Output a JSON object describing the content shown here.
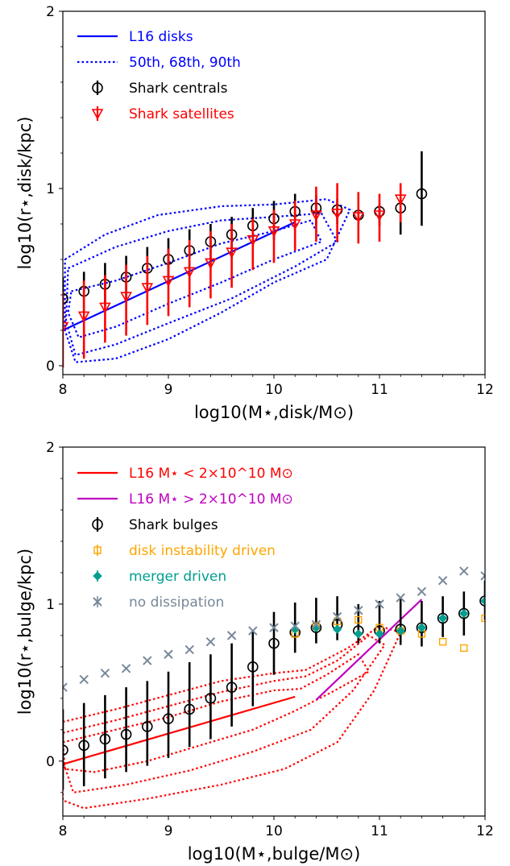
{
  "chart_data": [
    {
      "type": "scatter",
      "xlabel": "log10(M⋆,disk/M⊙)",
      "ylabel": "log10(r⋆,disk/kpc)",
      "xlim": [
        8,
        12
      ],
      "ylim": [
        -0.05,
        2.0
      ],
      "xticks": [
        8,
        9,
        10,
        11,
        12
      ],
      "yticks": [
        0,
        1,
        2
      ],
      "legend_position": "top-left",
      "lines": [
        {
          "name": "L16 disks",
          "color": "#0000ff",
          "style": "solid",
          "x": [
            8.0,
            10.2
          ],
          "y": [
            0.2,
            0.81
          ]
        }
      ],
      "contour_legend": {
        "name": "50th, 68th, 90th",
        "color": "#0000ff",
        "style": "dotted"
      },
      "contours": [
        [
          [
            8.08,
            0.42
          ],
          [
            8.5,
            0.48
          ],
          [
            9.0,
            0.58
          ],
          [
            9.5,
            0.69
          ],
          [
            10.0,
            0.76
          ],
          [
            10.35,
            0.82
          ],
          [
            10.45,
            0.7
          ],
          [
            10.0,
            0.6
          ],
          [
            9.5,
            0.47
          ],
          [
            9.0,
            0.35
          ],
          [
            8.5,
            0.22
          ],
          [
            8.15,
            0.16
          ],
          [
            8.05,
            0.3
          ],
          [
            8.08,
            0.42
          ]
        ],
        [
          [
            8.05,
            0.55
          ],
          [
            8.5,
            0.67
          ],
          [
            9.0,
            0.76
          ],
          [
            9.5,
            0.82
          ],
          [
            10.0,
            0.84
          ],
          [
            10.45,
            0.86
          ],
          [
            10.6,
            0.7
          ],
          [
            10.2,
            0.56
          ],
          [
            9.6,
            0.38
          ],
          [
            9.0,
            0.24
          ],
          [
            8.5,
            0.12
          ],
          [
            8.12,
            0.06
          ],
          [
            8.03,
            0.25
          ],
          [
            8.05,
            0.55
          ]
        ],
        [
          [
            8.02,
            0.6
          ],
          [
            8.4,
            0.74
          ],
          [
            8.9,
            0.85
          ],
          [
            9.5,
            0.9
          ],
          [
            10.0,
            0.91
          ],
          [
            10.5,
            0.94
          ],
          [
            10.72,
            0.88
          ],
          [
            10.5,
            0.6
          ],
          [
            10.0,
            0.47
          ],
          [
            9.5,
            0.3
          ],
          [
            9.0,
            0.15
          ],
          [
            8.5,
            0.04
          ],
          [
            8.12,
            0.02
          ],
          [
            8.02,
            0.2
          ],
          [
            8.02,
            0.6
          ]
        ]
      ],
      "series": [
        {
          "name": "Shark centrals",
          "color": "#000000",
          "marker": "circle",
          "x": [
            8.0,
            8.2,
            8.4,
            8.6,
            8.8,
            9.0,
            9.2,
            9.4,
            9.6,
            9.8,
            10.0,
            10.2,
            10.4,
            10.6,
            10.8,
            11.0,
            11.2,
            11.4
          ],
          "y": [
            0.38,
            0.42,
            0.46,
            0.5,
            0.55,
            0.6,
            0.65,
            0.7,
            0.74,
            0.79,
            0.83,
            0.87,
            0.89,
            0.88,
            0.85,
            0.87,
            0.89,
            0.97
          ],
          "err_low": [
            0.12,
            0.12,
            0.12,
            0.13,
            0.13,
            0.13,
            0.13,
            0.13,
            0.13,
            0.12,
            0.12,
            0.11,
            0.1,
            0.08,
            0.05,
            0.08,
            0.15,
            0.18
          ],
          "err_high": [
            0.12,
            0.11,
            0.12,
            0.12,
            0.12,
            0.12,
            0.12,
            0.1,
            0.1,
            0.1,
            0.1,
            0.1,
            0.07,
            0.06,
            0.03,
            0.04,
            0.04,
            0.24
          ]
        },
        {
          "name": "Shark satellites",
          "color": "#ff0000",
          "marker": "triangle-down",
          "x": [
            8.0,
            8.2,
            8.4,
            8.6,
            8.8,
            9.0,
            9.2,
            9.4,
            9.6,
            9.8,
            10.0,
            10.2,
            10.4,
            10.6,
            10.8,
            11.0,
            11.2
          ],
          "y": [
            0.22,
            0.28,
            0.33,
            0.39,
            0.44,
            0.48,
            0.53,
            0.58,
            0.64,
            0.71,
            0.76,
            0.8,
            0.85,
            0.86,
            0.84,
            0.85,
            0.94
          ],
          "err_low": [
            0.23,
            0.24,
            0.2,
            0.22,
            0.21,
            0.2,
            0.2,
            0.2,
            0.2,
            0.17,
            0.18,
            0.15,
            0.15,
            0.16,
            0.15,
            0.15,
            0.13
          ],
          "err_high": [
            0.2,
            0.2,
            0.18,
            0.18,
            0.18,
            0.18,
            0.18,
            0.18,
            0.16,
            0.12,
            0.12,
            0.13,
            0.16,
            0.17,
            0.14,
            0.12,
            0.09
          ]
        }
      ]
    },
    {
      "type": "scatter",
      "xlabel": "log10(M⋆,bulge/M⊙)",
      "ylabel": "log10(r⋆,bulge/kpc)",
      "xlim": [
        8,
        12
      ],
      "ylim": [
        -0.35,
        2.0
      ],
      "xticks": [
        8,
        9,
        10,
        11,
        12
      ],
      "yticks": [
        0,
        1,
        2
      ],
      "legend_position": "top-left",
      "lines": [
        {
          "name": "L16 M⋆ < 2×10^10 M⊙",
          "color": "#ff0000",
          "style": "solid",
          "x": [
            8.0,
            10.2
          ],
          "y": [
            -0.02,
            0.41
          ]
        },
        {
          "name": "L16 M⋆ > 2×10^10 M⊙",
          "color": "#bf00bf",
          "style": "solid",
          "x": [
            10.4,
            11.4
          ],
          "y": [
            0.39,
            1.03
          ]
        }
      ],
      "contours": [
        [
          [
            8.0,
            0.12
          ],
          [
            8.5,
            0.2
          ],
          [
            9.0,
            0.28
          ],
          [
            9.5,
            0.38
          ],
          [
            10.0,
            0.45
          ],
          [
            10.25,
            0.46
          ],
          [
            10.5,
            0.55
          ],
          [
            10.8,
            0.68
          ],
          [
            10.9,
            0.57
          ],
          [
            10.55,
            0.44
          ],
          [
            10.2,
            0.32
          ],
          [
            9.8,
            0.2
          ],
          [
            9.3,
            0.1
          ],
          [
            8.8,
            0.0
          ],
          [
            8.3,
            -0.07
          ],
          [
            8.02,
            -0.05
          ],
          [
            8.0,
            0.12
          ]
        ],
        [
          [
            8.0,
            0.18
          ],
          [
            8.5,
            0.26
          ],
          [
            9.0,
            0.35
          ],
          [
            9.5,
            0.44
          ],
          [
            10.0,
            0.51
          ],
          [
            10.3,
            0.54
          ],
          [
            10.6,
            0.64
          ],
          [
            10.9,
            0.8
          ],
          [
            11.05,
            0.74
          ],
          [
            10.75,
            0.45
          ],
          [
            10.35,
            0.2
          ],
          [
            9.8,
            0.06
          ],
          [
            9.2,
            -0.06
          ],
          [
            8.6,
            -0.15
          ],
          [
            8.1,
            -0.2
          ],
          [
            8.0,
            0.0
          ],
          [
            8.0,
            0.18
          ]
        ],
        [
          [
            8.0,
            0.25
          ],
          [
            8.5,
            0.33
          ],
          [
            9.0,
            0.42
          ],
          [
            9.5,
            0.51
          ],
          [
            10.0,
            0.56
          ],
          [
            10.3,
            0.58
          ],
          [
            10.7,
            0.72
          ],
          [
            11.0,
            0.86
          ],
          [
            11.2,
            0.82
          ],
          [
            10.95,
            0.45
          ],
          [
            10.6,
            0.12
          ],
          [
            10.1,
            -0.05
          ],
          [
            9.5,
            -0.15
          ],
          [
            8.8,
            -0.24
          ],
          [
            8.2,
            -0.3
          ],
          [
            8.0,
            -0.25
          ],
          [
            8.0,
            0.25
          ]
        ]
      ],
      "series": [
        {
          "name": "Shark bulges",
          "color": "#000000",
          "marker": "circle",
          "x": [
            8.0,
            8.2,
            8.4,
            8.6,
            8.8,
            9.0,
            9.2,
            9.4,
            9.6,
            9.8,
            10.0,
            10.2,
            10.4,
            10.6,
            10.8,
            11.0,
            11.2,
            11.4,
            11.6,
            11.8,
            12.0
          ],
          "y": [
            0.07,
            0.1,
            0.14,
            0.17,
            0.22,
            0.27,
            0.33,
            0.4,
            0.47,
            0.6,
            0.75,
            0.82,
            0.85,
            0.87,
            0.83,
            0.83,
            0.84,
            0.85,
            0.91,
            0.94,
            1.02
          ],
          "err_low": [
            0.25,
            0.26,
            0.25,
            0.24,
            0.25,
            0.25,
            0.24,
            0.26,
            0.25,
            0.25,
            0.2,
            0.13,
            0.1,
            0.1,
            0.08,
            0.08,
            0.1,
            0.12,
            0.12,
            0.14,
            0.12
          ],
          "err_high": [
            0.26,
            0.27,
            0.28,
            0.3,
            0.29,
            0.3,
            0.3,
            0.28,
            0.28,
            0.23,
            0.2,
            0.19,
            0.19,
            0.18,
            0.17,
            0.19,
            0.2,
            0.17,
            0.14,
            0.14,
            0.13
          ]
        },
        {
          "name": "disk instability driven",
          "color": "#ffa500",
          "marker": "square",
          "x": [
            10.2,
            10.4,
            10.6,
            10.8,
            11.0,
            11.2,
            11.4,
            11.6,
            11.8,
            12.0
          ],
          "y": [
            0.81,
            0.86,
            0.89,
            0.9,
            0.85,
            0.83,
            0.81,
            0.76,
            0.72,
            0.91
          ],
          "err_low": [
            0,
            0,
            0,
            0,
            0,
            0,
            0,
            0,
            0,
            0
          ],
          "err_high": [
            0,
            0,
            0,
            0,
            0,
            0,
            0,
            0,
            0,
            0
          ]
        },
        {
          "name": "merger driven",
          "color": "#009e8f",
          "marker": "diamond",
          "x": [
            10.2,
            10.4,
            10.6,
            10.8,
            11.0,
            11.2,
            11.4,
            11.6,
            11.8,
            12.0
          ],
          "y": [
            0.84,
            0.85,
            0.84,
            0.81,
            0.81,
            0.83,
            0.85,
            0.91,
            0.94,
            1.02
          ],
          "err_low": [
            0,
            0,
            0,
            0,
            0,
            0,
            0,
            0,
            0,
            0
          ],
          "err_high": [
            0,
            0,
            0,
            0,
            0,
            0,
            0,
            0,
            0,
            0
          ]
        },
        {
          "name": "no dissipation",
          "color": "#778899",
          "marker": "x",
          "x": [
            8.0,
            8.2,
            8.4,
            8.6,
            8.8,
            9.0,
            9.2,
            9.4,
            9.6,
            9.8,
            10.0,
            10.2,
            10.4,
            10.6,
            10.8,
            11.0,
            11.2,
            11.4,
            11.6,
            11.8,
            12.0
          ],
          "y": [
            0.47,
            0.52,
            0.56,
            0.59,
            0.64,
            0.68,
            0.71,
            0.76,
            0.8,
            0.83,
            0.85,
            0.86,
            0.87,
            0.92,
            0.96,
            1.0,
            1.04,
            1.08,
            1.15,
            1.21,
            1.18
          ],
          "err_low": [
            0,
            0,
            0,
            0,
            0,
            0,
            0,
            0,
            0,
            0,
            0,
            0,
            0,
            0,
            0,
            0,
            0,
            0,
            0,
            0,
            0
          ],
          "err_high": [
            0,
            0,
            0,
            0,
            0,
            0,
            0,
            0,
            0,
            0,
            0,
            0,
            0,
            0,
            0,
            0,
            0,
            0,
            0,
            0,
            0
          ]
        }
      ]
    }
  ]
}
